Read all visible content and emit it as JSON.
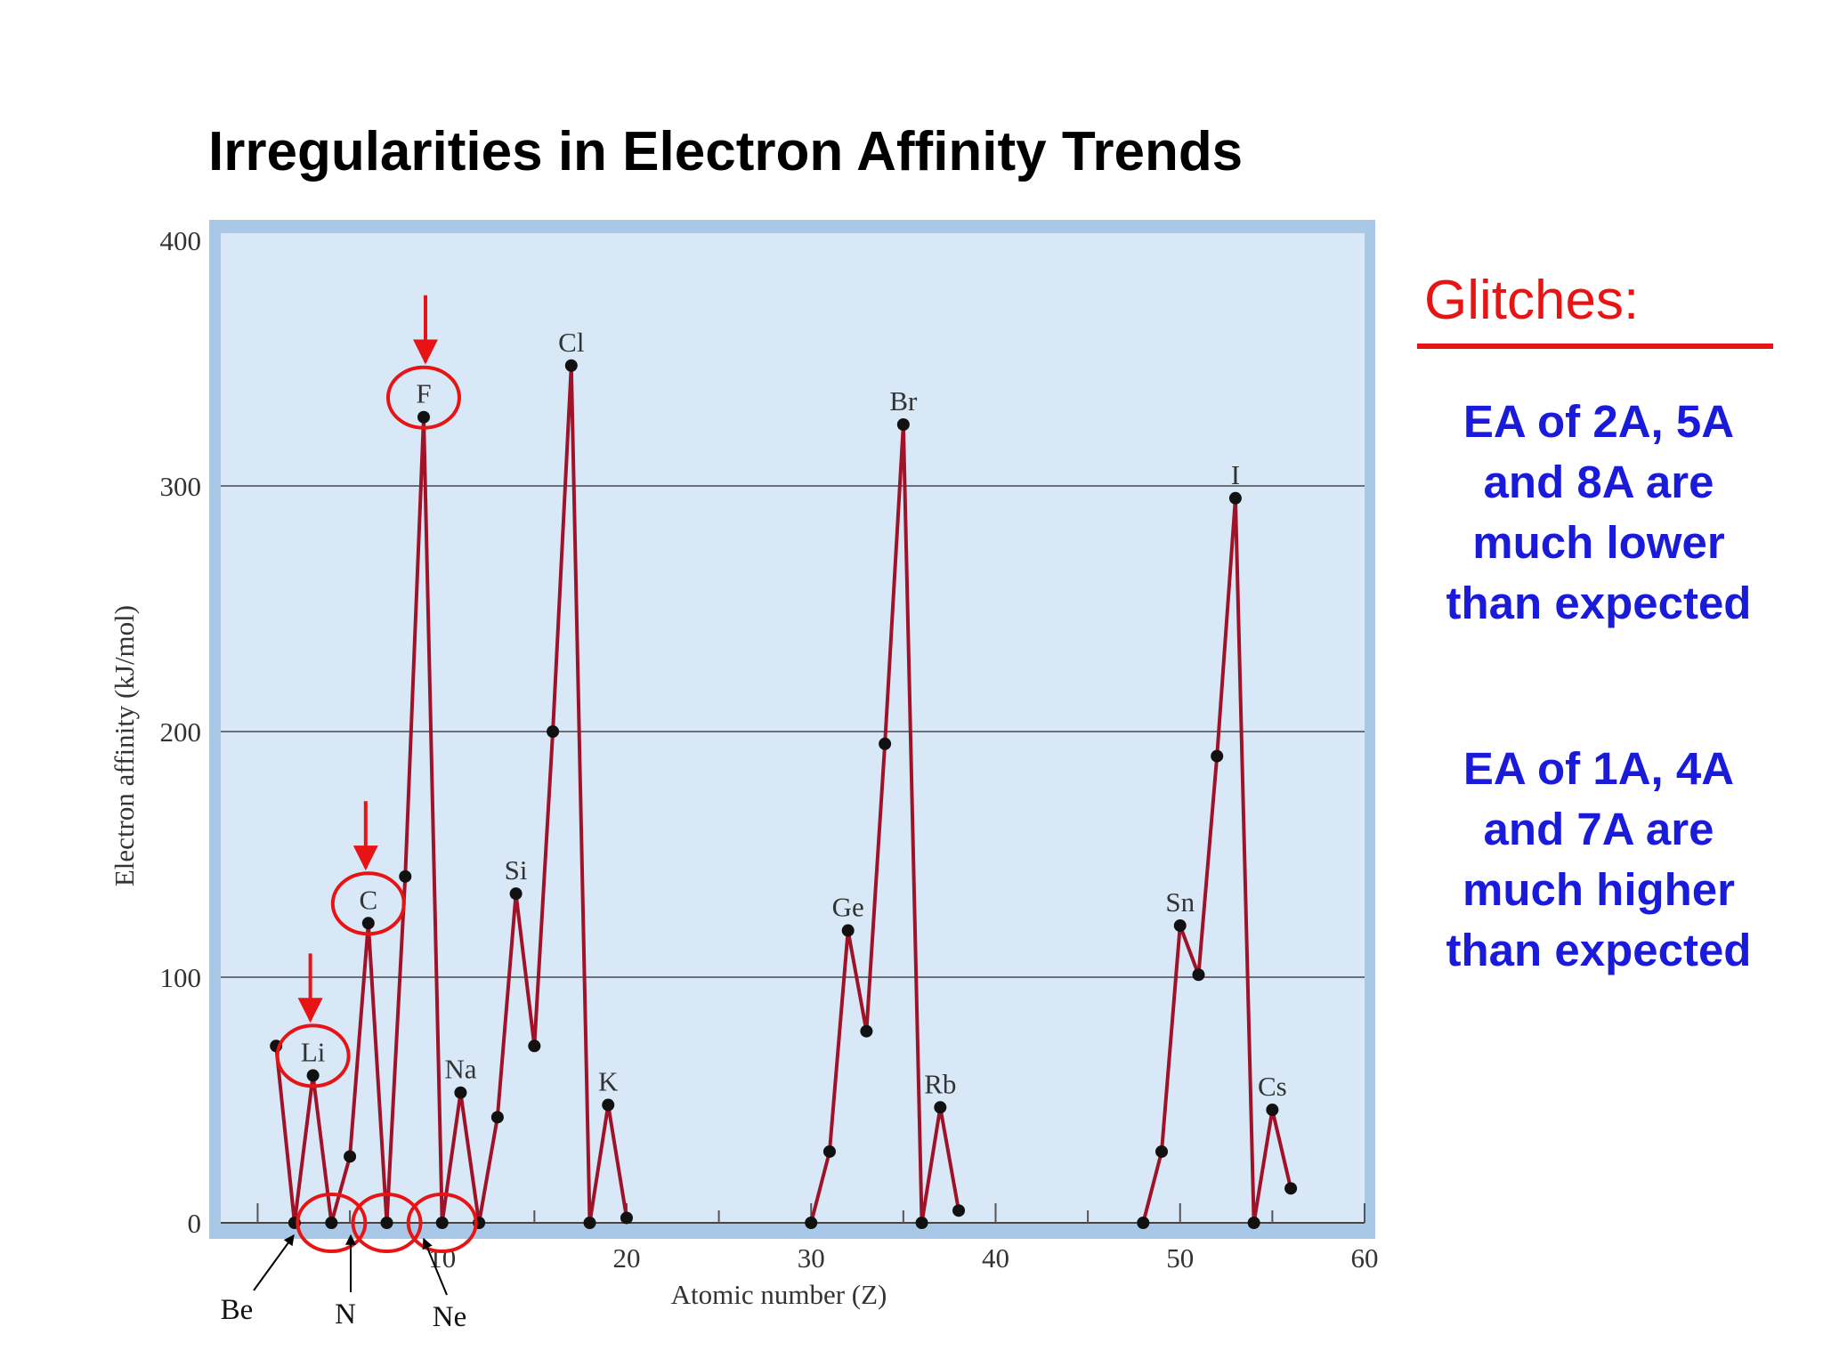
{
  "slide": {
    "title": "Irregularities in Electron Affinity Trends"
  },
  "glitches": {
    "heading": "Glitches:",
    "note_low": "EA of 2A,  5A\nand 8A are\nmuch lower\nthan expected",
    "note_high": "EA of 1A, 4A\nand 7A are\nmuch higher\nthan expected",
    "accent_color": "#e81414",
    "note_color": "#1a1adb"
  },
  "chart_data": {
    "type": "line",
    "xlabel": "Atomic number (Z)",
    "ylabel": "Electron affinity (kJ/mol)",
    "xlim": [
      -2,
      60
    ],
    "ylim": [
      0,
      400
    ],
    "xticks_labeled": [
      10,
      20,
      30,
      40,
      50,
      60
    ],
    "yticks": [
      0,
      100,
      200,
      300,
      400
    ],
    "grid": "horizontal at 100, 200, 300",
    "line_color": "#a01228",
    "plot_background": "#d8e8f7",
    "segments": [
      [
        [
          1,
          72
        ],
        [
          2,
          0
        ],
        [
          3,
          60
        ],
        [
          4,
          0
        ],
        [
          5,
          27
        ],
        [
          6,
          122
        ],
        [
          7,
          0
        ],
        [
          8,
          141
        ],
        [
          9,
          328
        ],
        [
          10,
          0
        ],
        [
          11,
          53
        ],
        [
          12,
          0
        ],
        [
          13,
          43
        ],
        [
          14,
          134
        ],
        [
          15,
          72
        ],
        [
          16,
          200
        ],
        [
          17,
          349
        ],
        [
          18,
          0
        ],
        [
          19,
          48
        ],
        [
          20,
          2
        ]
      ],
      [
        [
          30,
          0
        ],
        [
          31,
          29
        ],
        [
          32,
          119
        ],
        [
          33,
          78
        ],
        [
          34,
          195
        ],
        [
          35,
          325
        ],
        [
          36,
          0
        ],
        [
          37,
          47
        ],
        [
          38,
          5
        ]
      ],
      [
        [
          48,
          0
        ],
        [
          49,
          29
        ],
        [
          50,
          121
        ],
        [
          51,
          101
        ],
        [
          52,
          190
        ],
        [
          53,
          295
        ],
        [
          54,
          0
        ],
        [
          55,
          46
        ],
        [
          56,
          14
        ]
      ]
    ],
    "point_labels": [
      {
        "text": "Li",
        "z": 3,
        "ea": 60
      },
      {
        "text": "F",
        "z": 9,
        "ea": 328
      },
      {
        "text": "C",
        "z": 6,
        "ea": 122
      },
      {
        "text": "Na",
        "z": 11,
        "ea": 53
      },
      {
        "text": "Si",
        "z": 14,
        "ea": 134
      },
      {
        "text": "Cl",
        "z": 17,
        "ea": 349
      },
      {
        "text": "K",
        "z": 19,
        "ea": 48
      },
      {
        "text": "Ge",
        "z": 32,
        "ea": 119
      },
      {
        "text": "Br",
        "z": 35,
        "ea": 325
      },
      {
        "text": "Rb",
        "z": 37,
        "ea": 47
      },
      {
        "text": "Sn",
        "z": 50,
        "ea": 121
      },
      {
        "text": "I",
        "z": 53,
        "ea": 295
      },
      {
        "text": "Cs",
        "z": 55,
        "ea": 46
      }
    ],
    "highlights": [
      "Li",
      "C",
      "F",
      "Be",
      "N",
      "Ne"
    ],
    "callouts": [
      {
        "text": "Be",
        "z": 4
      },
      {
        "text": "N",
        "z": 7
      },
      {
        "text": "Ne",
        "z": 10
      }
    ]
  }
}
